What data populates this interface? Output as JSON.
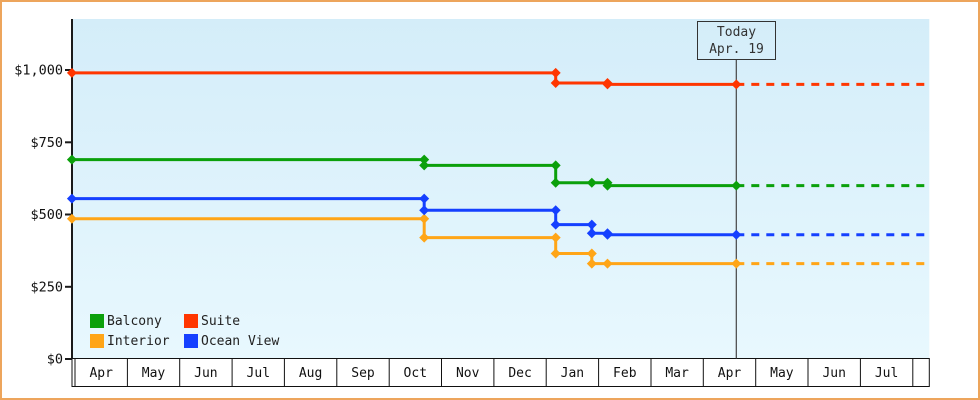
{
  "window": {
    "border_color": "#eda55c",
    "background_color": "#ffffff",
    "plot_bg_top": "#d4edf9",
    "plot_bg_bottom": "#e8f8fe",
    "axis_color": "#1a1a1a",
    "today_line_color": "#444444"
  },
  "chart_data": {
    "type": "line",
    "title": "",
    "xlabel": "",
    "ylabel": "",
    "grid": false,
    "legend_position": "bottom-left-inside",
    "ylim": [
      0,
      1175
    ],
    "y_axis": {
      "tick_labels": [
        "$0",
        "$250",
        "$500",
        "$750",
        "$1,000"
      ],
      "tick_values": [
        0,
        250,
        500,
        750,
        1000
      ]
    },
    "x_axis": {
      "month_labels": [
        "Apr",
        "May",
        "Jun",
        "Jul",
        "Aug",
        "Sep",
        "Oct",
        "Nov",
        "Dec",
        "Jan",
        "Feb",
        "Mar",
        "Apr",
        "May",
        "Jun",
        "Jul"
      ]
    },
    "today": {
      "line1": "Today",
      "line2": "Apr. 19",
      "month": 12.63
    },
    "forecast_dashed_after_today": true,
    "series": [
      {
        "name": "Balcony",
        "color": "#0ba00b",
        "segments": [
          {
            "from": -0.06,
            "to": 6.67,
            "value": 690
          },
          {
            "from": 6.67,
            "to": 9.18,
            "value": 670
          },
          {
            "from": 9.18,
            "to": 10.17,
            "value": 610
          },
          {
            "from": 10.17,
            "to": 12.63,
            "value": 600
          }
        ],
        "extra_markers": [
          {
            "m": 9.87,
            "value": 610
          }
        ]
      },
      {
        "name": "Suite",
        "color": "#ff3600",
        "segments": [
          {
            "from": -0.06,
            "to": 9.18,
            "value": 990
          },
          {
            "from": 9.18,
            "to": 10.17,
            "value": 955
          },
          {
            "from": 10.17,
            "to": 12.63,
            "value": 950
          }
        ],
        "extra_markers": []
      },
      {
        "name": "Interior",
        "color": "#ffa517",
        "segments": [
          {
            "from": -0.06,
            "to": 6.67,
            "value": 485
          },
          {
            "from": 6.67,
            "to": 9.18,
            "value": 420
          },
          {
            "from": 9.18,
            "to": 9.87,
            "value": 365
          },
          {
            "from": 9.87,
            "to": 12.63,
            "value": 330
          }
        ],
        "extra_markers": [
          {
            "m": 10.17,
            "value": 330
          }
        ]
      },
      {
        "name": "Ocean View",
        "color": "#1540ff",
        "segments": [
          {
            "from": -0.06,
            "to": 6.67,
            "value": 555
          },
          {
            "from": 6.67,
            "to": 9.18,
            "value": 515
          },
          {
            "from": 9.18,
            "to": 9.87,
            "value": 465
          },
          {
            "from": 9.87,
            "to": 10.17,
            "value": 435
          },
          {
            "from": 10.17,
            "to": 12.63,
            "value": 430
          }
        ],
        "extra_markers": []
      }
    ]
  }
}
